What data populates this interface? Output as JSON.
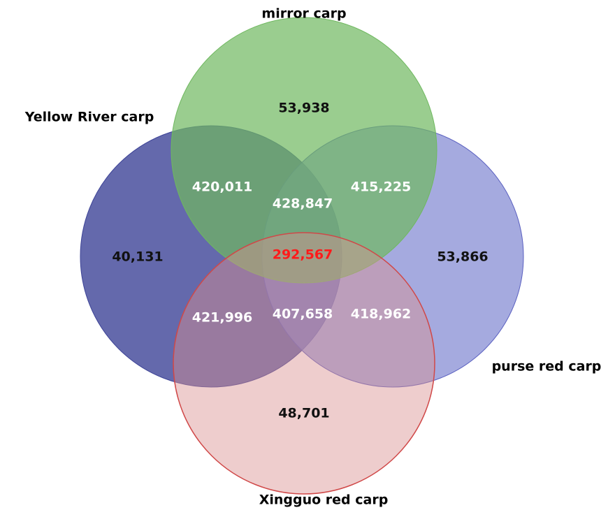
{
  "sets": [
    "mirror carp",
    "Yellow River carp",
    "purse red carp",
    "Xingguo red carp"
  ],
  "regions": [
    {
      "label": "53,938",
      "color": "#111111"
    },
    {
      "label": "420,011",
      "color": "#ffffff"
    },
    {
      "label": "415,225",
      "color": "#ffffff"
    },
    {
      "label": "428,847",
      "color": "#ffffff"
    },
    {
      "label": "40,131",
      "color": "#111111"
    },
    {
      "label": "292,567",
      "color": "#ff1a1a"
    },
    {
      "label": "53,866",
      "color": "#111111"
    },
    {
      "label": "421,996",
      "color": "#ffffff"
    },
    {
      "label": "407,658",
      "color": "#ffffff"
    },
    {
      "label": "418,962",
      "color": "#ffffff"
    },
    {
      "label": "48,701",
      "color": "#111111"
    }
  ]
}
